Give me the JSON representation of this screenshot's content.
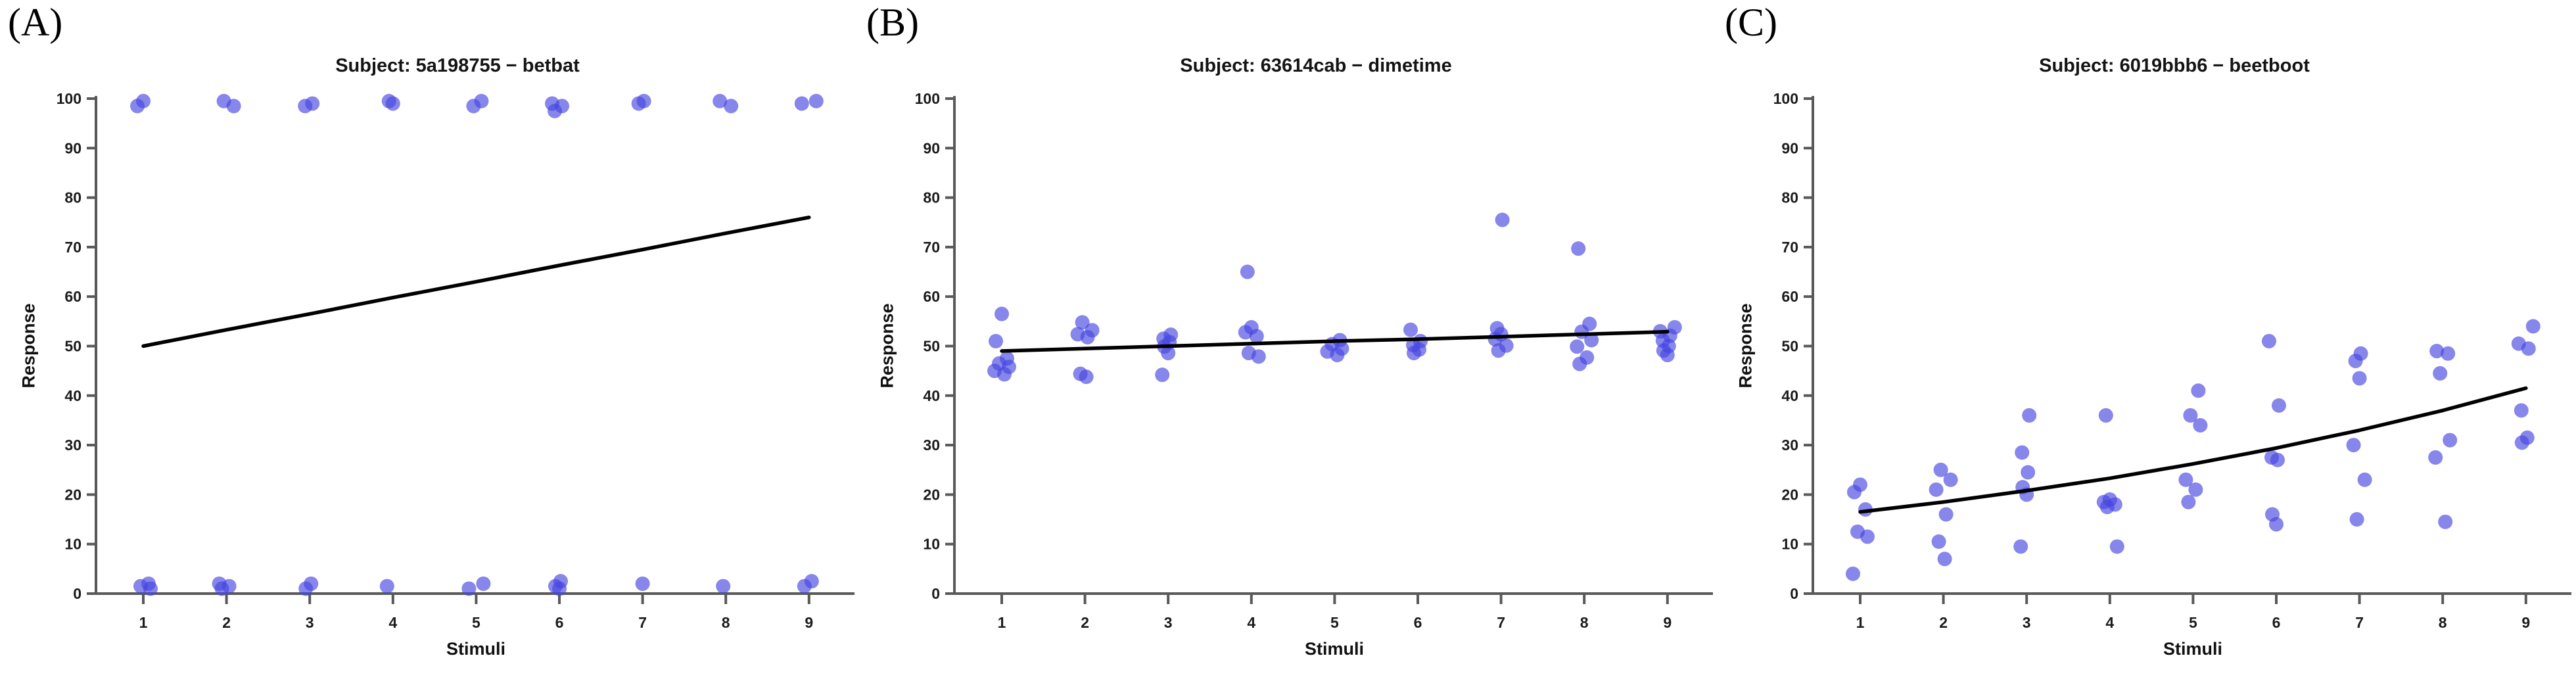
{
  "figure": {
    "background": "#ffffff",
    "axis_color": "#595959",
    "tick_label_color": "#1c1c1c",
    "panel_count": 3
  },
  "chart_data": [
    {
      "type": "scatter",
      "panel_label": "(A)",
      "title": "Subject: 5a198755 − betbat",
      "xlabel": "Stimuli",
      "ylabel": "Response",
      "x_ticks": [
        1,
        2,
        3,
        4,
        5,
        6,
        7,
        8,
        9
      ],
      "y_ticks": [
        0,
        10,
        20,
        30,
        40,
        50,
        60,
        70,
        80,
        90,
        100
      ],
      "xlim": [
        0.5,
        9.5
      ],
      "ylim": [
        0,
        100
      ],
      "grid": false,
      "legend": "none",
      "point_color": "#4545e0",
      "point_opacity": 0.65,
      "trend_color": "#000000",
      "points_by_stimulus": [
        [
          99.5,
          98.5,
          2,
          1.5,
          1
        ],
        [
          99.5,
          98.5,
          2,
          1.5,
          1
        ],
        [
          99,
          98.5,
          2,
          1
        ],
        [
          99.5,
          99,
          1.5
        ],
        [
          99.5,
          98.5,
          2,
          1
        ],
        [
          99,
          98.5,
          97.5,
          2.5,
          1.5,
          1
        ],
        [
          99.5,
          99,
          2
        ],
        [
          99.5,
          98.5,
          1.5
        ],
        [
          99.5,
          99,
          2.5,
          1.5
        ]
      ],
      "trend_by_stimulus": [
        50,
        53.3,
        56.5,
        59.8,
        63,
        66.3,
        69.5,
        72.8,
        76
      ]
    },
    {
      "type": "scatter",
      "panel_label": "(B)",
      "title": "Subject: 63614cab − dimetime",
      "xlabel": "Stimuli",
      "ylabel": "Response",
      "x_ticks": [
        1,
        2,
        3,
        4,
        5,
        6,
        7,
        8,
        9
      ],
      "y_ticks": [
        0,
        10,
        20,
        30,
        40,
        50,
        60,
        70,
        80,
        90,
        100
      ],
      "xlim": [
        0.5,
        9.5
      ],
      "ylim": [
        0,
        100
      ],
      "grid": false,
      "legend": "none",
      "point_color": "#4545e0",
      "point_opacity": 0.65,
      "trend_color": "#000000",
      "points_by_stimulus": [
        [
          56.5,
          51,
          47.5,
          46.5,
          45.8,
          45,
          44.3
        ],
        [
          54.8,
          53.2,
          52.4,
          51.8,
          44.4,
          43.8
        ],
        [
          52.3,
          51.5,
          50.8,
          49.9,
          48.6,
          44.2
        ],
        [
          65,
          53.8,
          52.8,
          52,
          48.6,
          47.9
        ],
        [
          51.2,
          50.4,
          49.5,
          48.9,
          48.2
        ],
        [
          53.3,
          51,
          50.2,
          49.3,
          48.6
        ],
        [
          75.5,
          53.6,
          52.4,
          51.4,
          50.1,
          49.1
        ],
        [
          69.7,
          54.5,
          52.9,
          51.2,
          49.9,
          47.7,
          46.4
        ],
        [
          53.8,
          53,
          52.1,
          51.1,
          50,
          49.1,
          48.2
        ]
      ],
      "trend_by_stimulus": [
        49,
        49.5,
        50,
        50.5,
        51,
        51.4,
        51.9,
        52.4,
        52.9
      ]
    },
    {
      "type": "scatter",
      "panel_label": "(C)",
      "title": "Subject: 6019bbb6 − beetboot",
      "xlabel": "Stimuli",
      "ylabel": "Response",
      "x_ticks": [
        1,
        2,
        3,
        4,
        5,
        6,
        7,
        8,
        9
      ],
      "y_ticks": [
        0,
        10,
        20,
        30,
        40,
        50,
        60,
        70,
        80,
        90,
        100
      ],
      "xlim": [
        0.5,
        9.5
      ],
      "ylim": [
        0,
        100
      ],
      "grid": false,
      "legend": "none",
      "point_color": "#4545e0",
      "point_opacity": 0.65,
      "trend_color": "#000000",
      "points_by_stimulus": [
        [
          22,
          20.5,
          17,
          12.5,
          11.5,
          4
        ],
        [
          25,
          23,
          21,
          16,
          10.5,
          7
        ],
        [
          36,
          28.5,
          24.5,
          21.5,
          20,
          9.5
        ],
        [
          36,
          19,
          18.5,
          18,
          17.5,
          9.5
        ],
        [
          41,
          36,
          34,
          23,
          21,
          18.5
        ],
        [
          51,
          38,
          27.5,
          27,
          16,
          14
        ],
        [
          48.5,
          47,
          43.5,
          30,
          23,
          15
        ],
        [
          49,
          48.5,
          44.5,
          31,
          27.5,
          14.5
        ],
        [
          54,
          50.5,
          49.5,
          37,
          31.5,
          30.5
        ]
      ],
      "trend_by_stimulus": [
        16.5,
        18.5,
        20.8,
        23.3,
        26.2,
        29.4,
        33.0,
        37.0,
        41.5
      ]
    }
  ]
}
